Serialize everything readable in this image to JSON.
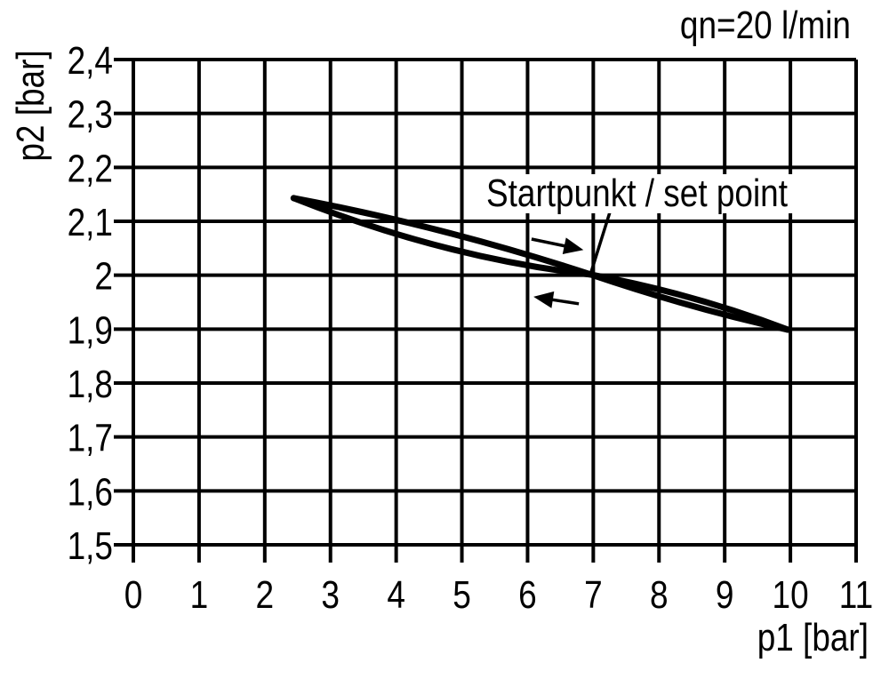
{
  "page": {
    "background": "#ffffff",
    "ink_color": "#000000"
  },
  "chart_data": {
    "type": "line",
    "title": "qn=20 l/min",
    "xlabel": "p1 [bar]",
    "ylabel": "p2 [bar]",
    "xlim": [
      0,
      11
    ],
    "ylim": [
      1.5,
      2.4
    ],
    "x_ticks": [
      "0",
      "1",
      "2",
      "3",
      "4",
      "5",
      "6",
      "7",
      "8",
      "9",
      "10",
      "11"
    ],
    "y_ticks": [
      "2,4",
      "2,3",
      "2,2",
      "2,1",
      "2",
      "1,9",
      "1,8",
      "1,7",
      "1,6",
      "1,5"
    ],
    "grid": true,
    "legend_position": "none",
    "annotation": "Startpunkt / set point",
    "set_point": {
      "p1": 7.0,
      "p2": 2.0
    },
    "series": [
      {
        "name": "hysteresis branch, p1 increasing (right arrow)",
        "bezier": {
          "start": [
            2.44,
            2.143
          ],
          "c1": [
            4.74,
            2.09
          ],
          "mid": [
            6.97,
            2.001
          ],
          "c2": [
            8.52,
            1.937
          ],
          "end": [
            9.96,
            1.899
          ]
        },
        "points_readout": [
          [
            2.5,
            2.14
          ],
          [
            4.7,
            2.08
          ],
          [
            7.0,
            2.0
          ],
          [
            8.5,
            1.93
          ],
          [
            10.0,
            1.9
          ]
        ]
      },
      {
        "name": "hysteresis branch, p1 decreasing (left arrow)",
        "bezier": {
          "start": [
            2.44,
            2.143
          ],
          "c1": [
            4.74,
            2.032
          ],
          "mid": [
            6.97,
            2.001
          ],
          "c2": [
            8.52,
            1.966
          ],
          "end": [
            9.96,
            1.899
          ]
        },
        "points_readout": [
          [
            2.5,
            2.14
          ],
          [
            4.7,
            2.05
          ],
          [
            7.0,
            2.0
          ],
          [
            8.5,
            1.97
          ],
          [
            10.0,
            1.9
          ]
        ]
      }
    ],
    "arrows": [
      {
        "direction": "right",
        "tail": [
          6.06,
          2.067
        ],
        "tip": [
          6.85,
          2.047
        ]
      },
      {
        "direction": "left",
        "tail": [
          6.78,
          1.947
        ],
        "tip": [
          6.09,
          1.96
        ]
      }
    ],
    "leader_line": {
      "from_label": [
        7.25,
        2.116
      ],
      "to_point": [
        6.96,
        2.003
      ]
    }
  }
}
